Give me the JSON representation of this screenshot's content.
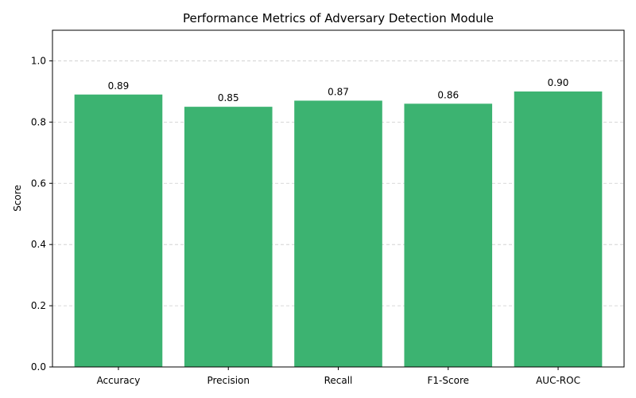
{
  "chart_data": {
    "type": "bar",
    "title": "Performance Metrics of Adversary Detection Module",
    "xlabel": "",
    "ylabel": "Score",
    "categories": [
      "Accuracy",
      "Precision",
      "Recall",
      "F1-Score",
      "AUC-ROC"
    ],
    "values": [
      0.89,
      0.85,
      0.87,
      0.86,
      0.9
    ],
    "value_labels": [
      "0.89",
      "0.85",
      "0.87",
      "0.86",
      "0.90"
    ],
    "ylim": [
      0,
      1.1
    ],
    "yticks": [
      0.0,
      0.2,
      0.4,
      0.6,
      0.8,
      1.0
    ],
    "ytick_labels": [
      "0.0",
      "0.2",
      "0.4",
      "0.6",
      "0.8",
      "1.0"
    ],
    "grid": "y-axis, dashed",
    "legend": "none",
    "bar_color": "#3cb371"
  }
}
